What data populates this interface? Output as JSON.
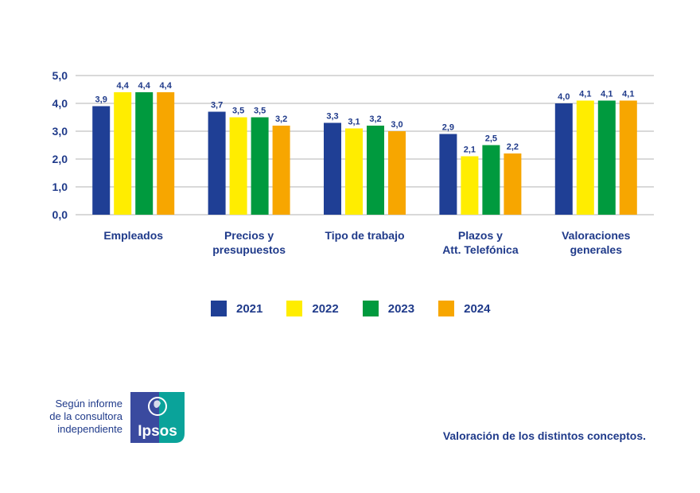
{
  "chart_data": {
    "type": "bar",
    "categories": [
      [
        "Empleados"
      ],
      [
        "Precios y",
        "presupuestos"
      ],
      [
        "Tipo de trabajo"
      ],
      [
        "Plazos y",
        "Att. Telefónica"
      ],
      [
        "Valoraciones",
        "generales"
      ]
    ],
    "series": [
      {
        "name": "2021",
        "color": "#1f3f95",
        "values": [
          3.9,
          3.7,
          3.3,
          2.9,
          4.0
        ],
        "labels": [
          "3,9",
          "3,7",
          "3,3",
          "2,9",
          "4,0"
        ]
      },
      {
        "name": "2022",
        "color": "#ffed00",
        "values": [
          4.4,
          3.5,
          3.1,
          2.1,
          4.1
        ],
        "labels": [
          "4,4",
          "3,5",
          "3,1",
          "2,1",
          "4,1"
        ]
      },
      {
        "name": "2023",
        "color": "#009a3e",
        "values": [
          4.4,
          3.5,
          3.2,
          2.5,
          4.1
        ],
        "labels": [
          "4,4",
          "3,5",
          "3,2",
          "2,5",
          "4,1"
        ]
      },
      {
        "name": "2024",
        "color": "#f7a600",
        "values": [
          4.4,
          3.2,
          3.0,
          2.2,
          4.1
        ],
        "labels": [
          "4,4",
          "3,2",
          "3,0",
          "2,2",
          "4,1"
        ]
      }
    ],
    "ylim": [
      0,
      5
    ],
    "yticks": [
      "0,0",
      "1,0",
      "2,0",
      "3,0",
      "4,0",
      "5,0"
    ],
    "grid": true,
    "legend_position": "bottom"
  },
  "source_text": [
    "Según informe",
    "de la consultora",
    "independiente"
  ],
  "logo_text": "Ipsos",
  "caption": "Valoración de los distintos conceptos.",
  "colors": {
    "text": "#1f3a8a",
    "grid": "#d9d9d9",
    "logo_blue": "#3a4a9f",
    "logo_teal": "#0aa39a"
  }
}
